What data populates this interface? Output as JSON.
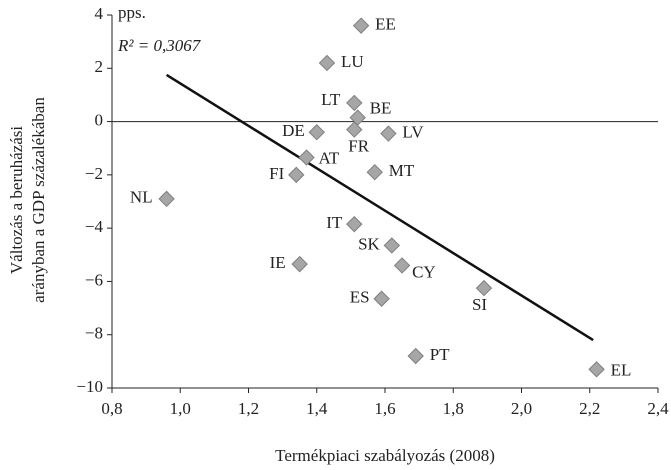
{
  "chart_data": {
    "type": "scatter",
    "annotations": [
      "pps.",
      "R² = 0,3067"
    ],
    "x_label": "Termékpiaci szabályozás (2008)",
    "y_label": [
      "Változás a beruházási",
      "arányban a GDP százalékában"
    ],
    "labels": [
      "EE",
      "LU",
      "LT",
      "BE",
      "FR",
      "LV",
      "DE",
      "AT",
      "FI",
      "NL",
      "MT",
      "IT",
      "SK",
      "IE",
      "CY",
      "ES",
      "SI",
      "PT",
      "EL"
    ],
    "x": [
      1.53,
      1.43,
      1.51,
      1.52,
      1.51,
      1.61,
      1.4,
      1.37,
      1.34,
      0.96,
      1.57,
      1.51,
      1.62,
      1.35,
      1.65,
      1.59,
      1.89,
      1.69,
      2.22
    ],
    "y": [
      3.6,
      2.2,
      0.7,
      0.15,
      -0.3,
      -0.45,
      -0.4,
      -1.35,
      -2.0,
      -2.9,
      -1.9,
      -3.85,
      -4.65,
      -5.35,
      -5.4,
      -6.65,
      -6.25,
      -8.8,
      -9.3
    ],
    "color": "#a6a6a6",
    "trendline": {
      "x": [
        0.96,
        2.21
      ],
      "y": [
        1.75,
        -8.2
      ],
      "color": "#111111"
    },
    "xlim": [
      0.8,
      2.4
    ],
    "xticks": [
      {
        "value": 0.8,
        "label": "0,8"
      },
      {
        "value": 1.0,
        "label": "1,0"
      },
      {
        "value": 1.2,
        "label": "1,2"
      },
      {
        "value": 1.4,
        "label": "1,4"
      },
      {
        "value": 1.6,
        "label": "1,6"
      },
      {
        "value": 1.8,
        "label": "1,8"
      },
      {
        "value": 2.0,
        "label": "2,0"
      },
      {
        "value": 2.2,
        "label": "2,2"
      },
      {
        "value": 2.4,
        "label": "2,4"
      }
    ],
    "ylim": [
      -10,
      4
    ],
    "yticks": [
      {
        "value": -10,
        "label": "−10"
      },
      {
        "value": -8,
        "label": "−8"
      },
      {
        "value": -6,
        "label": "−6"
      },
      {
        "value": -4,
        "label": "−4"
      },
      {
        "value": -2,
        "label": "−2"
      },
      0,
      2,
      4
    ]
  }
}
